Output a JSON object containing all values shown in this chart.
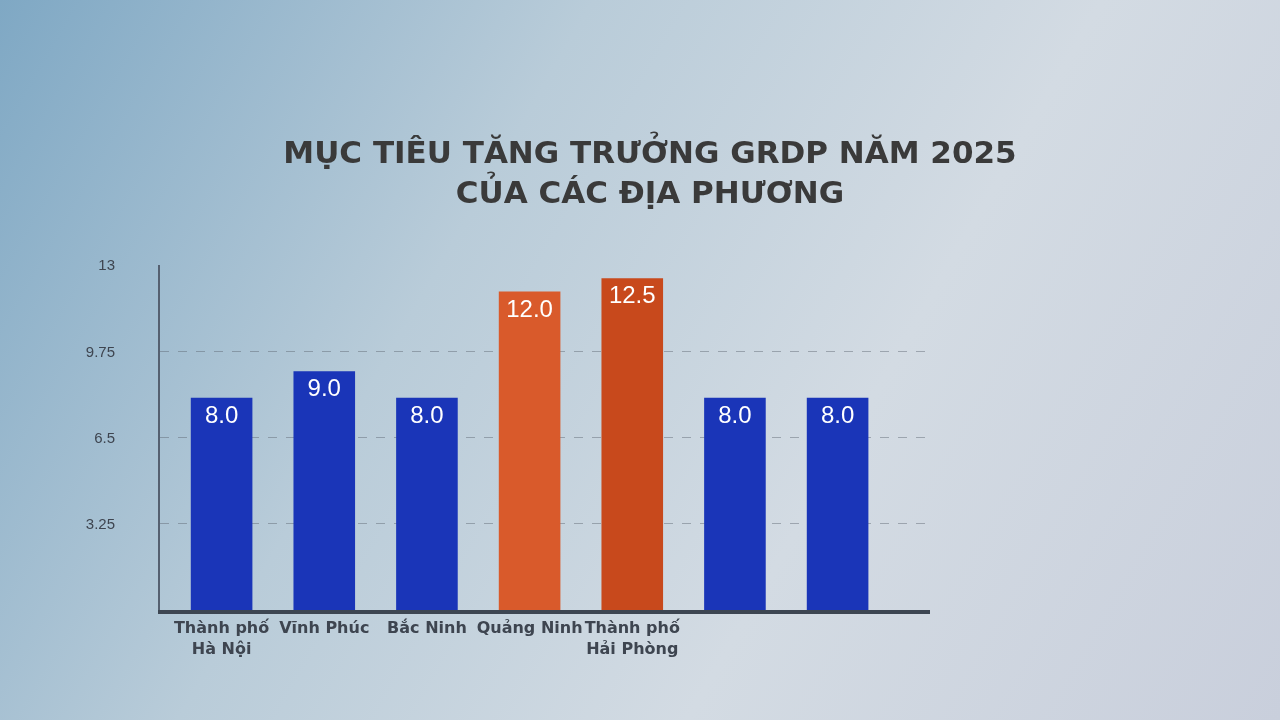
{
  "chart_data": {
    "type": "bar",
    "title": "MỤC TIÊU TĂNG TRƯỞNG GRDP NĂM 2025 CỦA CÁC ĐỊA PHƯƠNG",
    "categories": [
      "Thành phố Hà Nội",
      "Vĩnh Phúc",
      "Bắc Ninh",
      "Quảng Ninh",
      "Thành phố Hải Phòng",
      null,
      null
    ],
    "values": [
      8.0,
      9.0,
      8.0,
      12.0,
      12.5,
      8.0,
      8.0
    ],
    "colors": [
      "#1a35b8",
      "#1a35b8",
      "#1a35b8",
      "#d95a2b",
      "#c8491c",
      "#1a35b8",
      "#1a35b8"
    ],
    "value_labels": [
      "8.0",
      "9.0",
      "8.0",
      "12.0",
      "12.5",
      "8.0",
      "8.0"
    ],
    "ylim": [
      0,
      13
    ],
    "yticks": [
      3.25,
      6.5,
      9.75,
      13
    ],
    "grid": "y"
  }
}
